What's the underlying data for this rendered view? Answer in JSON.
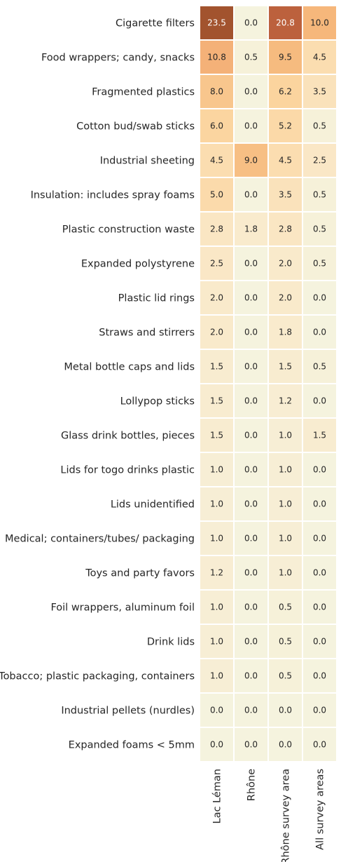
{
  "chart_data": {
    "type": "heatmap",
    "rows": [
      "Cigarette filters",
      "Food wrappers; candy, snacks",
      "Fragmented plastics",
      "Cotton bud/swab sticks",
      "Industrial sheeting",
      "Insulation: includes spray foams",
      "Plastic construction waste",
      "Expanded polystyrene",
      "Plastic lid rings",
      "Straws and stirrers",
      "Metal bottle caps and lids",
      "Lollypop sticks",
      "Glass drink bottles, pieces",
      "Lids for togo drinks plastic",
      "Lids unidentified",
      "Medical; containers/tubes/ packaging",
      "Toys and party favors",
      "Foil wrappers, aluminum foil",
      "Drink lids",
      "Tobacco; plastic packaging, containers",
      "Industrial pellets (nurdles)",
      "Expanded foams < 5mm"
    ],
    "columns": [
      "Lac Léman",
      "Rhône",
      "Rhône survey area",
      "All survey areas"
    ],
    "values": [
      [
        "23.5",
        "0.0",
        "20.8",
        "10.0"
      ],
      [
        "10.8",
        "0.5",
        "9.5",
        "4.5"
      ],
      [
        "8.0",
        "0.0",
        "6.2",
        "3.5"
      ],
      [
        "6.0",
        "0.0",
        "5.2",
        "0.5"
      ],
      [
        "4.5",
        "9.0",
        "4.5",
        "2.5"
      ],
      [
        "5.0",
        "0.0",
        "3.5",
        "0.5"
      ],
      [
        "2.8",
        "1.8",
        "2.8",
        "0.5"
      ],
      [
        "2.5",
        "0.0",
        "2.0",
        "0.5"
      ],
      [
        "2.0",
        "0.0",
        "2.0",
        "0.0"
      ],
      [
        "2.0",
        "0.0",
        "1.8",
        "0.0"
      ],
      [
        "1.5",
        "0.0",
        "1.5",
        "0.5"
      ],
      [
        "1.5",
        "0.0",
        "1.2",
        "0.0"
      ],
      [
        "1.5",
        "0.0",
        "1.0",
        "1.5"
      ],
      [
        "1.0",
        "0.0",
        "1.0",
        "0.0"
      ],
      [
        "1.0",
        "0.0",
        "1.0",
        "0.0"
      ],
      [
        "1.0",
        "0.0",
        "1.0",
        "0.0"
      ],
      [
        "1.2",
        "0.0",
        "1.0",
        "0.0"
      ],
      [
        "1.0",
        "0.0",
        "0.5",
        "0.0"
      ],
      [
        "1.0",
        "0.0",
        "0.5",
        "0.0"
      ],
      [
        "1.0",
        "0.0",
        "0.5",
        "0.0"
      ],
      [
        "0.0",
        "0.0",
        "0.0",
        "0.0"
      ],
      [
        "0.0",
        "0.0",
        "0.0",
        "0.0"
      ]
    ],
    "vmin": 0,
    "vmax": 23.5,
    "colorbar": false,
    "grid": false
  }
}
